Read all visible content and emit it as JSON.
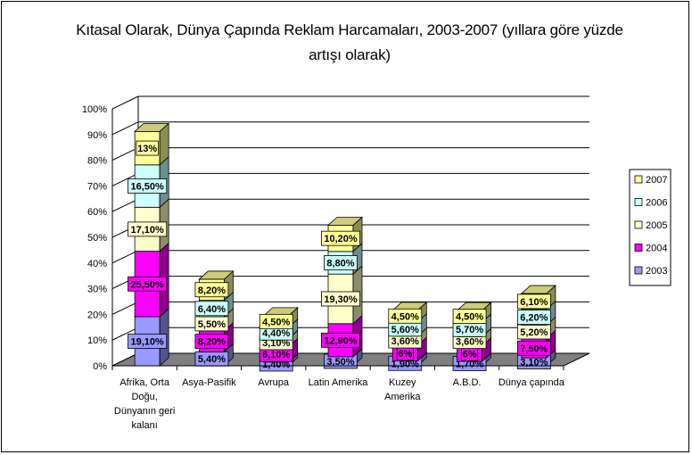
{
  "chart_data": {
    "type": "bar",
    "stacked": true,
    "three_d": true,
    "title": "Kıtasal Olarak, Dünya Çapında Reklam Harcamaları, 2003-2007 (yıllara göre yüzde artışı olarak)",
    "title_lines": [
      "Kıtasal Olarak, Dünya Çapında Reklam Harcamaları, 2003-2007 (yıllara göre yüzde",
      "artışı olarak)"
    ],
    "xlabel": "",
    "ylabel": "",
    "ylim": [
      0,
      100
    ],
    "y_ticks": [
      "0%",
      "10%",
      "20%",
      "30%",
      "40%",
      "50%",
      "60%",
      "70%",
      "80%",
      "90%",
      "100%"
    ],
    "grid": true,
    "legend_position": "right",
    "categories": [
      [
        "Afrika, Orta",
        "Doğu,",
        "Dünyanın geri",
        "kalanı"
      ],
      [
        "Asya-Pasifik"
      ],
      [
        "Avrupa"
      ],
      [
        "Latin Amerika"
      ],
      [
        "Kuzey",
        "Amerika"
      ],
      [
        "A.B.D."
      ],
      [
        "Dünya çapında"
      ]
    ],
    "series": [
      {
        "name": "2003",
        "color": "#9999ff",
        "values": [
          19.1,
          5.4,
          1.4,
          3.5,
          1.9,
          1.7,
          3.1
        ],
        "labels": [
          "19,10%",
          "5,40%",
          "1,40%",
          "3,50%",
          "1,90%",
          "1,70%",
          "3,10%"
        ]
      },
      {
        "name": "2004",
        "color": "#ff00ff",
        "values": [
          25.5,
          8.2,
          6.1,
          12.9,
          6,
          6,
          7.5
        ],
        "labels": [
          "25,50%",
          "8,20%",
          "6,10%",
          "12,90%",
          "6%",
          "6%",
          "7,50%"
        ]
      },
      {
        "name": "2005",
        "color": "#ffffcc",
        "values": [
          17.1,
          5.5,
          3.1,
          19.3,
          3.6,
          3.6,
          5.2
        ],
        "labels": [
          "17,10%",
          "5,50%",
          "3,10%",
          "19,30%",
          "3,60%",
          "3,60%",
          "5,20%"
        ]
      },
      {
        "name": "2006",
        "color": "#ccffff",
        "values": [
          16.5,
          6.4,
          4.4,
          8.8,
          5.6,
          5.7,
          6.2
        ],
        "labels": [
          "16,50%",
          "6,40%",
          "4,40%",
          "8,80%",
          "5,60%",
          "5,70%",
          "6,20%"
        ]
      },
      {
        "name": "2007",
        "color": "#ffff99",
        "values": [
          13,
          8.2,
          4.5,
          10.2,
          4.5,
          4.5,
          6.1
        ],
        "labels": [
          "13%",
          "8,20%",
          "4,50%",
          "10,20%",
          "4,50%",
          "4,50%",
          "6,10%"
        ]
      }
    ],
    "legend_order": [
      "2007",
      "2006",
      "2005",
      "2004",
      "2003"
    ]
  }
}
